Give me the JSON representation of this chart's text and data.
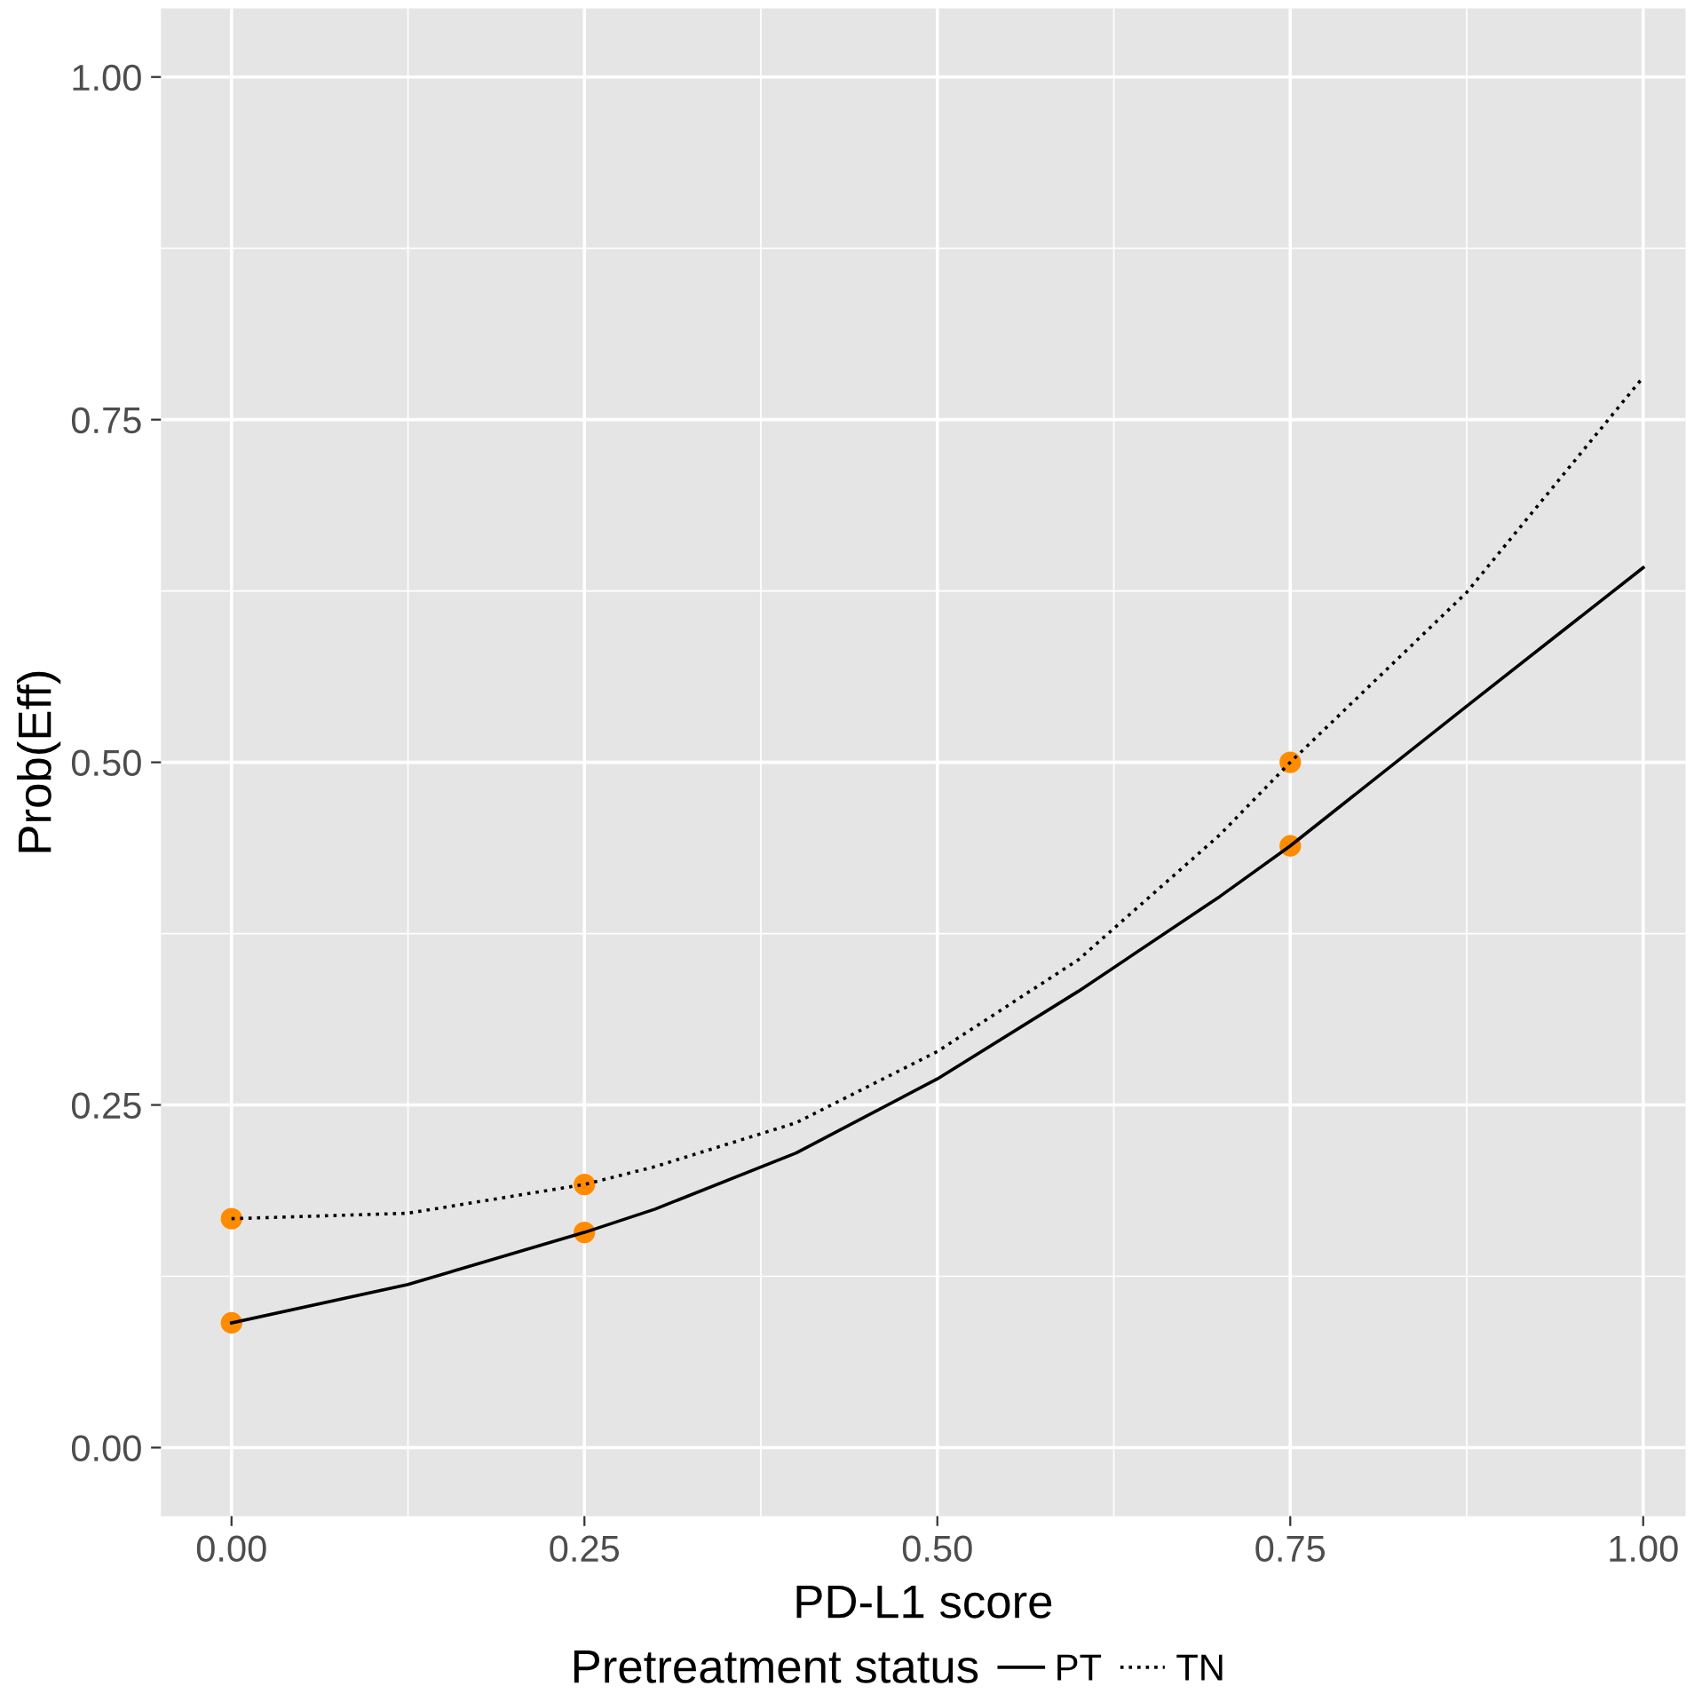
{
  "chart_data": {
    "type": "line",
    "xlabel": "PD-L1 score",
    "ylabel": "Prob(Eff)",
    "legend_title": "Pretreatment status",
    "xlim": [
      -0.05,
      1.03
    ],
    "ylim": [
      -0.05,
      1.05
    ],
    "xticks": [
      {
        "value": 0,
        "label": "0.00"
      },
      {
        "value": 0.25,
        "label": "0.25"
      },
      {
        "value": 0.5,
        "label": "0.50"
      },
      {
        "value": 0.75,
        "label": "0.75"
      },
      {
        "value": 1,
        "label": "1.00"
      }
    ],
    "yticks": [
      {
        "value": 0,
        "label": "0.00"
      },
      {
        "value": 0.25,
        "label": "0.25"
      },
      {
        "value": 0.5,
        "label": "0.50"
      },
      {
        "value": 0.75,
        "label": "0.75"
      },
      {
        "value": 1,
        "label": "1.00"
      }
    ],
    "grid": true,
    "legend": "bottom",
    "series": [
      {
        "name": "PT",
        "color": "#000000",
        "line_style": "solid",
        "marker": "none",
        "x": [
          0,
          0.125,
          0.25,
          0.3,
          0.4,
          0.5,
          0.6,
          0.7,
          0.75,
          0.875,
          1
        ],
        "values": [
          0.091,
          0.119,
          0.157,
          0.174,
          0.215,
          0.269,
          0.333,
          0.402,
          0.439,
          0.541,
          0.642
        ]
      },
      {
        "name": "TN",
        "color": "#000000",
        "line_style": "dotted",
        "marker": "none",
        "x": [
          0,
          0.125,
          0.25,
          0.3,
          0.4,
          0.5,
          0.6,
          0.7,
          0.75,
          0.875,
          1
        ],
        "values": [
          0.167,
          0.171,
          0.192,
          0.205,
          0.237,
          0.289,
          0.356,
          0.447,
          0.5,
          0.624,
          0.781
        ]
      },
      {
        "type": "scatter",
        "color": "#ff8c00",
        "marker": "circle",
        "x": [
          0,
          0.25,
          0.75
        ],
        "values": [
          0.091,
          0.157,
          0.439
        ]
      },
      {
        "type": "scatter",
        "color": "#ff8c00",
        "marker": "circle",
        "x": [
          0,
          0.25,
          0.75
        ],
        "values": [
          0.167,
          0.192,
          0.5
        ]
      }
    ]
  }
}
